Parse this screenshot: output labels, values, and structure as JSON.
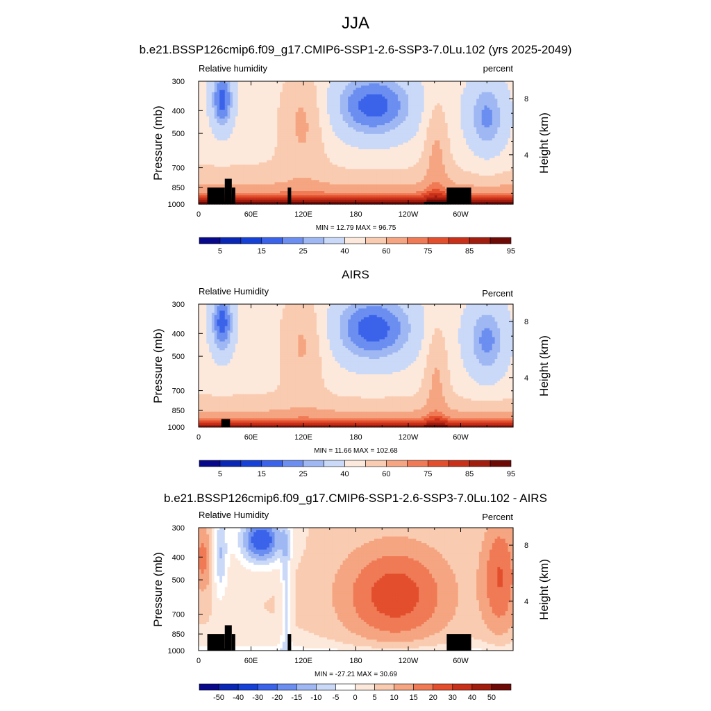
{
  "main_title": "JJA",
  "colormaps": {
    "rh": [
      "#08088a",
      "#0a26b5",
      "#1641d6",
      "#3a63ea",
      "#6b8ef0",
      "#9fb8f3",
      "#cad9f8",
      "#fde9dc",
      "#f9cbb0",
      "#f5a581",
      "#ef7a55",
      "#e34e2c",
      "#c8301a",
      "#a11d0e",
      "#6e0a06"
    ],
    "diff": [
      "#08088a",
      "#0a26b5",
      "#1641d6",
      "#3a63ea",
      "#6b8ef0",
      "#9fb8f3",
      "#cad9f8",
      "#ffffff",
      "#fde9dc",
      "#f9cbb0",
      "#f5a581",
      "#ef7a55",
      "#e34e2c",
      "#c8301a",
      "#a11d0e",
      "#6e0a06"
    ]
  },
  "chart_data": [
    {
      "type": "heatmap",
      "title": "b.e21.BSSP126cmip6.f09_g17.CMIP6-SSP1-2.6-SSP3-7.0Lu.102 (yrs 2025-2049)",
      "left_label": "Relative humidity",
      "right_label": "percent",
      "ylabel": "Pressure (mb)",
      "y2label": "Height (km)",
      "x_ticks": [
        "0",
        "60E",
        "120E",
        "180",
        "120W",
        "60W"
      ],
      "x_tick_values": [
        0,
        60,
        120,
        180,
        240,
        300
      ],
      "xlim": [
        0,
        360
      ],
      "y_ticks": [
        "300",
        "400",
        "500",
        "700",
        "850",
        "1000"
      ],
      "y_tick_values": [
        300,
        400,
        500,
        700,
        850,
        1000
      ],
      "ylim": [
        1000,
        300
      ],
      "y_scale": "log",
      "y2_ticks": [
        "8",
        "4"
      ],
      "y2_tick_values": [
        8,
        4
      ],
      "min_max_text": "MIN =  12.79  MAX =  96.75",
      "min": 12.79,
      "max": 96.75,
      "colorbar_labels": [
        "5",
        "15",
        "25",
        "40",
        "60",
        "75",
        "85",
        "95"
      ],
      "colormap": "rh",
      "levels": [
        0,
        5,
        10,
        15,
        20,
        25,
        30,
        40,
        50,
        60,
        70,
        75,
        80,
        85,
        90,
        95
      ],
      "bias": 6,
      "terrain": [
        [
          10,
          30,
          850
        ],
        [
          30,
          38,
          780
        ],
        [
          38,
          42,
          850
        ],
        [
          102,
          106,
          850
        ],
        [
          284,
          312,
          850
        ]
      ]
    },
    {
      "type": "heatmap",
      "title": "AIRS",
      "left_label": "Relative Humidity",
      "right_label": "Percent",
      "ylabel": "Pressure (mb)",
      "y2label": "Height (km)",
      "x_ticks": [
        "0",
        "60E",
        "120E",
        "180",
        "120W",
        "60W"
      ],
      "x_tick_values": [
        0,
        60,
        120,
        180,
        240,
        300
      ],
      "xlim": [
        0,
        360
      ],
      "y_ticks": [
        "300",
        "400",
        "500",
        "700",
        "850",
        "1000"
      ],
      "y_tick_values": [
        300,
        400,
        500,
        700,
        850,
        1000
      ],
      "ylim": [
        1000,
        300
      ],
      "y_scale": "log",
      "y2_ticks": [
        "8",
        "4"
      ],
      "y2_tick_values": [
        8,
        4
      ],
      "min_max_text": "MIN =  11.66  MAX = 102.68",
      "min": 11.66,
      "max": 102.68,
      "colorbar_labels": [
        "5",
        "15",
        "25",
        "40",
        "60",
        "75",
        "85",
        "95"
      ],
      "colormap": "rh",
      "levels": [
        0,
        5,
        10,
        15,
        20,
        25,
        30,
        40,
        50,
        60,
        70,
        75,
        80,
        85,
        90,
        95
      ],
      "bias": 0,
      "terrain": [
        [
          26,
          36,
          900
        ]
      ]
    },
    {
      "type": "heatmap",
      "title": "b.e21.BSSP126cmip6.f09_g17.CMIP6-SSP1-2.6-SSP3-7.0Lu.102 - AIRS",
      "left_label": "Relative Humidity",
      "right_label": "Percent",
      "ylabel": "Pressure (mb)",
      "y2label": "Height (km)",
      "x_ticks": [
        "0",
        "60E",
        "120E",
        "180",
        "120W",
        "60W"
      ],
      "x_tick_values": [
        0,
        60,
        120,
        180,
        240,
        300
      ],
      "xlim": [
        0,
        360
      ],
      "y_ticks": [
        "300",
        "400",
        "500",
        "700",
        "850",
        "1000"
      ],
      "y_tick_values": [
        300,
        400,
        500,
        700,
        850,
        1000
      ],
      "ylim": [
        1000,
        300
      ],
      "y_scale": "log",
      "y2_ticks": [
        "8",
        "4"
      ],
      "y2_tick_values": [
        8,
        4
      ],
      "min_max_text": "MIN = -27.21  MAX =  30.69",
      "min": -27.21,
      "max": 30.69,
      "colorbar_labels": [
        "-50",
        "-40",
        "-30",
        "-20",
        "-15",
        "-10",
        "-5",
        "0",
        "5",
        "10",
        "15",
        "20",
        "30",
        "40",
        "50"
      ],
      "colormap": "diff",
      "levels": [
        -60,
        -50,
        -40,
        -30,
        -20,
        -15,
        -10,
        -5,
        0,
        5,
        10,
        15,
        20,
        30,
        40,
        50
      ],
      "bias": 0,
      "terrain": [
        [
          10,
          30,
          850
        ],
        [
          30,
          38,
          780
        ],
        [
          38,
          42,
          850
        ],
        [
          102,
          106,
          850
        ],
        [
          284,
          312,
          850
        ]
      ]
    }
  ]
}
